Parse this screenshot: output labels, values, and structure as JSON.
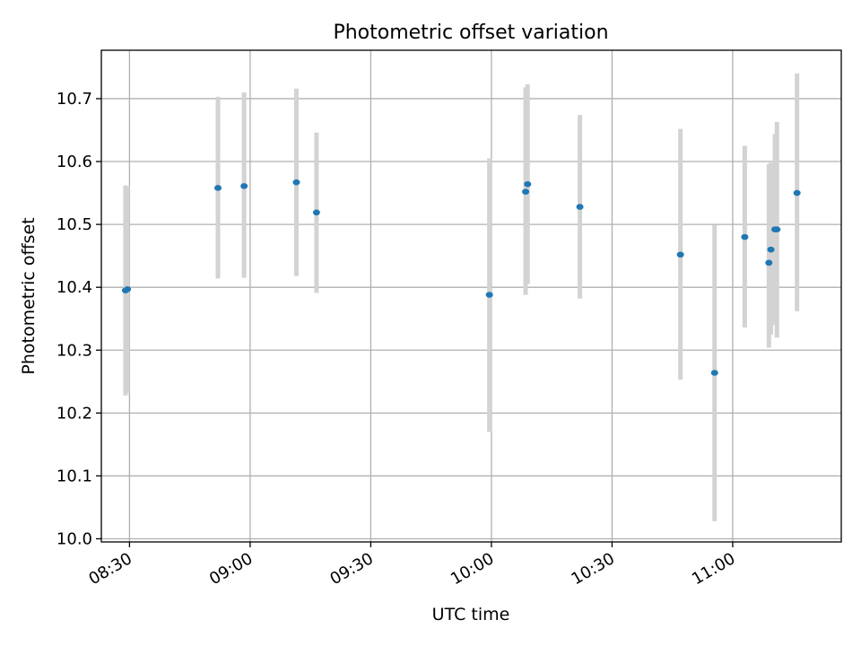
{
  "chart_data": {
    "type": "scatter",
    "title": "Photometric offset variation",
    "xlabel": "UTC time",
    "ylabel": "Photometric offset",
    "x_unit": "time-of-day (HH:MM UTC)",
    "xlim": [
      "08:23",
      "11:27"
    ],
    "ylim": [
      9.995,
      10.777
    ],
    "x_ticks": [
      "08:30",
      "09:00",
      "09:30",
      "10:00",
      "10:30",
      "11:00"
    ],
    "y_ticks": [
      "10.0",
      "10.1",
      "10.2",
      "10.3",
      "10.4",
      "10.5",
      "10.6",
      "10.7"
    ],
    "grid": true,
    "point_color": "#1f77b4",
    "errorbar_color": "#d3d3d3",
    "points": [
      {
        "x": "08:29:00",
        "y": 10.395,
        "err_low": 10.228,
        "err_high": 10.562
      },
      {
        "x": "08:29:30",
        "y": 10.397,
        "err_low": 10.232,
        "err_high": 10.56
      },
      {
        "x": "08:52:00",
        "y": 10.558,
        "err_low": 10.414,
        "err_high": 10.703
      },
      {
        "x": "08:58:30",
        "y": 10.561,
        "err_low": 10.415,
        "err_high": 10.71
      },
      {
        "x": "09:11:30",
        "y": 10.567,
        "err_low": 10.418,
        "err_high": 10.716
      },
      {
        "x": "09:16:30",
        "y": 10.519,
        "err_low": 10.391,
        "err_high": 10.646
      },
      {
        "x": "09:59:30",
        "y": 10.388,
        "err_low": 10.17,
        "err_high": 10.605
      },
      {
        "x": "10:08:30",
        "y": 10.552,
        "err_low": 10.388,
        "err_high": 10.718
      },
      {
        "x": "10:09:00",
        "y": 10.564,
        "err_low": 10.405,
        "err_high": 10.723
      },
      {
        "x": "10:22:00",
        "y": 10.528,
        "err_low": 10.382,
        "err_high": 10.674
      },
      {
        "x": "10:47:00",
        "y": 10.452,
        "err_low": 10.253,
        "err_high": 10.652
      },
      {
        "x": "10:55:30",
        "y": 10.264,
        "err_low": 10.028,
        "err_high": 10.499
      },
      {
        "x": "11:03:00",
        "y": 10.48,
        "err_low": 10.336,
        "err_high": 10.625
      },
      {
        "x": "11:09:00",
        "y": 10.439,
        "err_low": 10.304,
        "err_high": 10.596
      },
      {
        "x": "11:09:30",
        "y": 10.46,
        "err_low": 10.325,
        "err_high": 10.598
      },
      {
        "x": "11:10:30",
        "y": 10.492,
        "err_low": 10.34,
        "err_high": 10.644
      },
      {
        "x": "11:11:00",
        "y": 10.492,
        "err_low": 10.32,
        "err_high": 10.663
      },
      {
        "x": "11:16:00",
        "y": 10.55,
        "err_low": 10.362,
        "err_high": 10.74
      }
    ]
  }
}
